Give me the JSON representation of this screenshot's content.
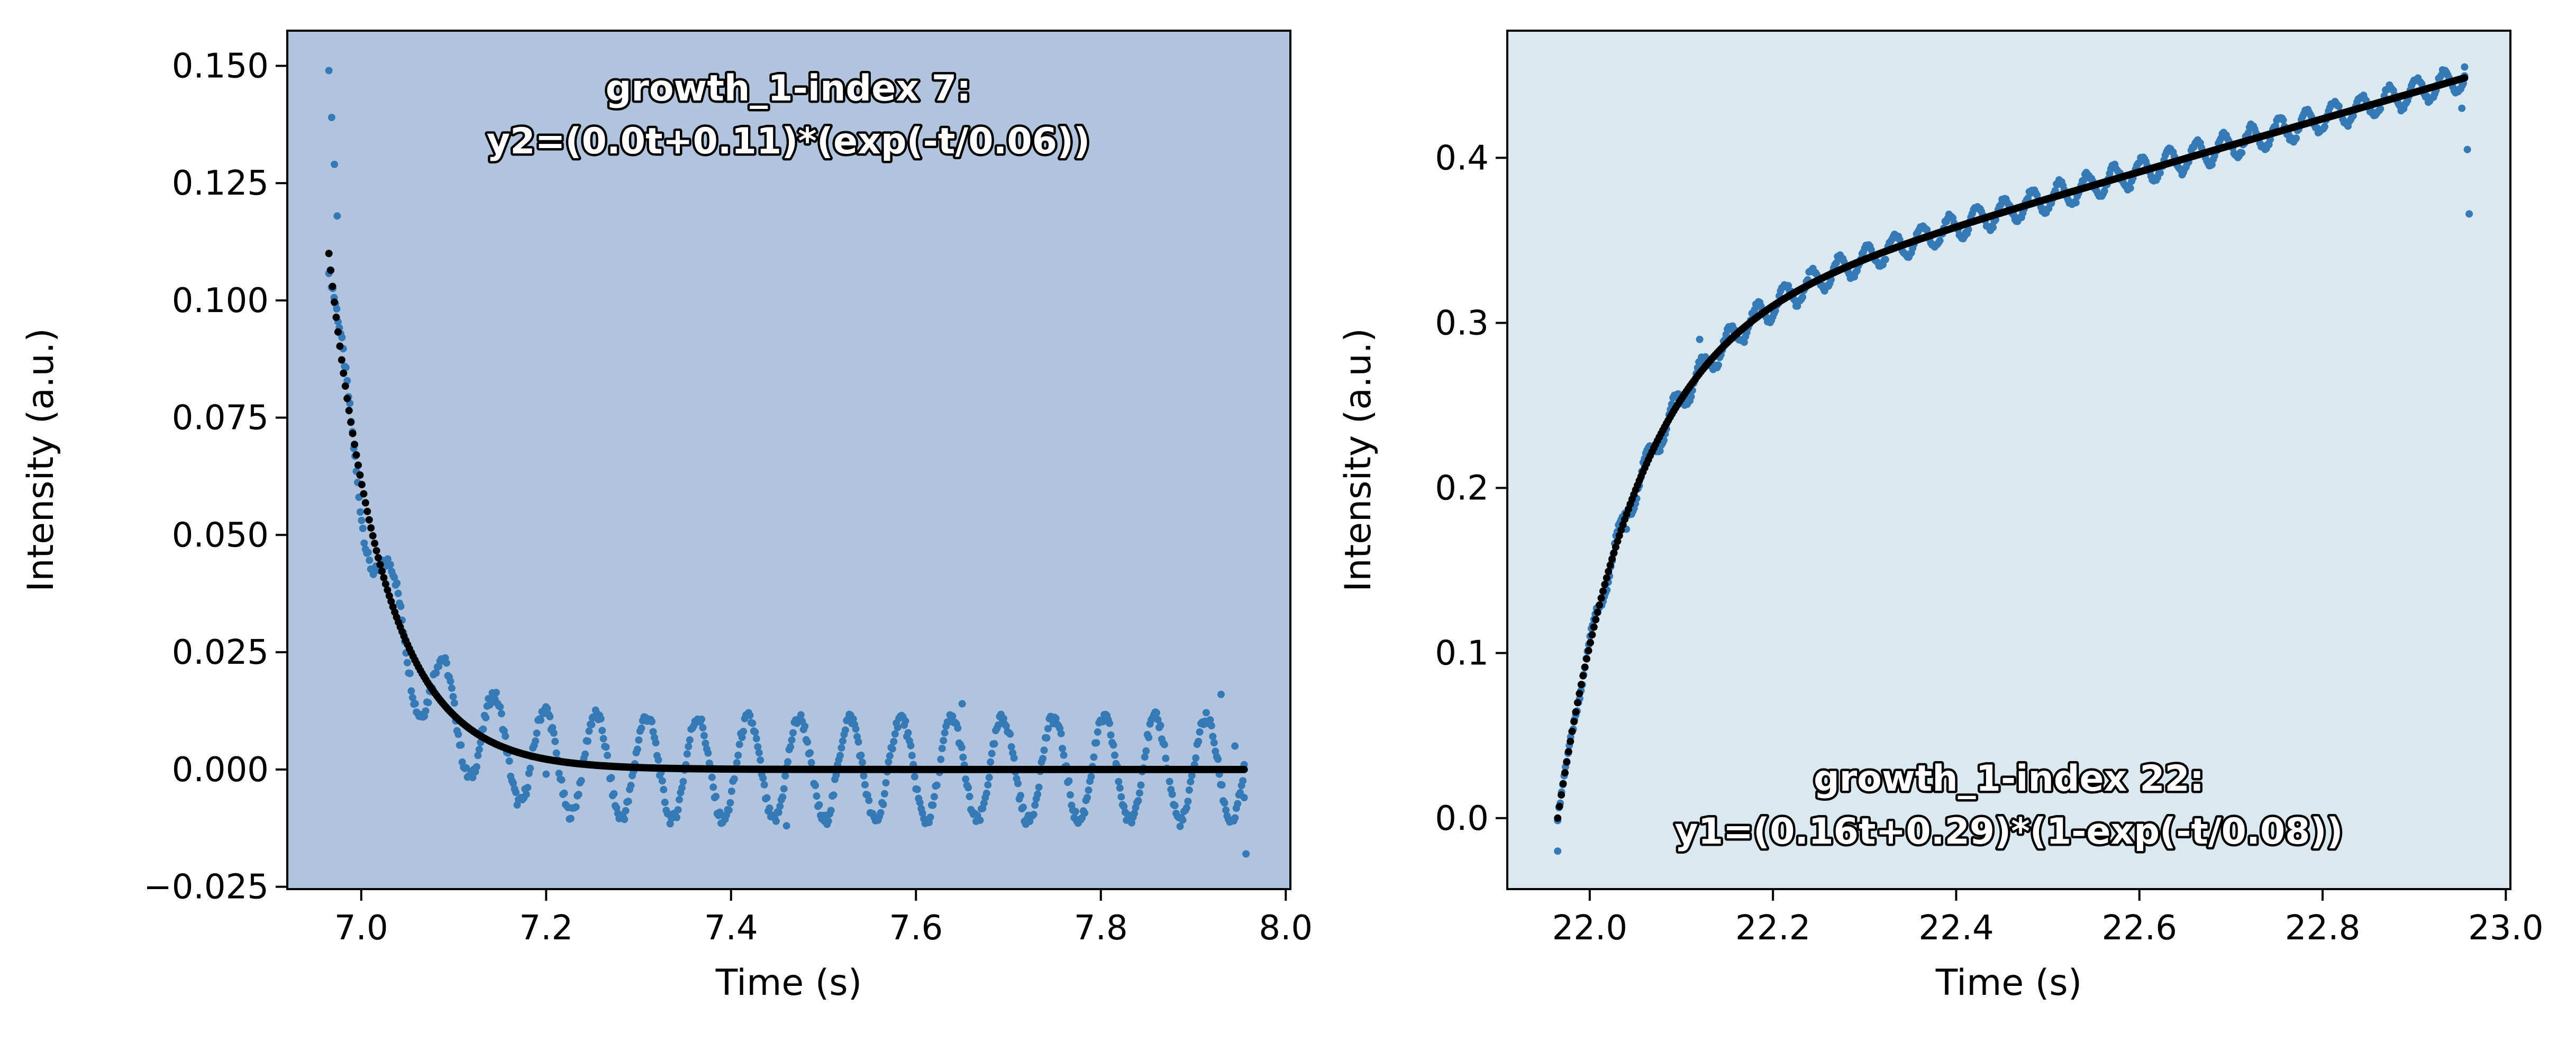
{
  "colors": {
    "left_panel_bg": "#b0c4de",
    "right_panel_bg": "#dae8f0",
    "data_points": "#3679b7",
    "fit_curve": "#000000"
  },
  "chart_data": [
    {
      "type": "scatter",
      "title": "",
      "annotation_lines": [
        "growth_1-index 7:",
        "y2=(0.0t+0.11)*(exp(-t/0.06))"
      ],
      "annotation_position": "top-center",
      "xlabel": "Time (s)",
      "ylabel": "Intensity (a.u.)",
      "xlim": [
        6.92,
        8.005
      ],
      "ylim": [
        -0.0255,
        0.1575
      ],
      "xticks": [
        7.0,
        7.2,
        7.4,
        7.6,
        7.8,
        8.0
      ],
      "xtick_labels": [
        "7.0",
        "7.2",
        "7.4",
        "7.6",
        "7.8",
        "8.0"
      ],
      "yticks": [
        -0.025,
        0.0,
        0.025,
        0.05,
        0.075,
        0.1,
        0.125,
        0.15
      ],
      "ytick_labels": [
        "−0.025",
        "0.000",
        "0.025",
        "0.050",
        "0.075",
        "0.100",
        "0.125",
        "0.150"
      ],
      "grid": false,
      "series": [
        {
          "kind": "measured",
          "x_range": [
            6.965,
            7.955
          ],
          "profile": "decay-with-oscillation",
          "decay_amplitude": 0.107,
          "decay_tau": 0.06,
          "oscillation_amplitude": 0.011,
          "oscillation_period": 0.055,
          "points": [
            [
              6.965,
              0.149
            ],
            [
              6.968,
              0.139
            ],
            [
              6.971,
              0.129
            ],
            [
              6.974,
              0.118
            ],
            [
              7.955,
              -0.006
            ],
            [
              7.957,
              -0.018
            ],
            [
              7.945,
              0.005
            ],
            [
              7.93,
              0.016
            ],
            [
              7.46,
              -0.012
            ],
            [
              7.65,
              0.014
            ],
            [
              7.2,
              -0.001
            ],
            [
              7.25,
              0.011
            ]
          ]
        },
        {
          "kind": "fit",
          "equation": "y2=(0.0t+0.11)*(exp(-t/0.06))",
          "x_range": [
            6.965,
            7.955
          ],
          "t0": 6.965,
          "amplitude": 0.11,
          "tau": 0.06
        }
      ]
    },
    {
      "type": "scatter",
      "title": "",
      "annotation_lines": [
        "growth_1-index 22:",
        "y1=(0.16t+0.29)*(1-exp(-t/0.08))"
      ],
      "annotation_position": "bottom-center",
      "xlabel": "Time (s)",
      "ylabel": "Intensity (a.u.)",
      "xlim": [
        21.91,
        23.005
      ],
      "ylim": [
        -0.043,
        0.477
      ],
      "xticks": [
        22.0,
        22.2,
        22.4,
        22.6,
        22.8,
        23.0
      ],
      "xtick_labels": [
        "22.0",
        "22.2",
        "22.4",
        "22.6",
        "22.8",
        "23.0"
      ],
      "yticks": [
        0.0,
        0.1,
        0.2,
        0.3,
        0.4
      ],
      "ytick_labels": [
        "0.0",
        "0.1",
        "0.2",
        "0.3",
        "0.4"
      ],
      "grid": false,
      "series": [
        {
          "kind": "measured",
          "x_range": [
            21.965,
            22.955
          ],
          "profile": "growth-with-oscillation",
          "oscillation_amplitude": 0.008,
          "oscillation_period": 0.03,
          "points": [
            [
              21.965,
              -0.02
            ],
            [
              22.955,
              0.455
            ],
            [
              22.958,
              0.405
            ],
            [
              22.96,
              0.366
            ],
            [
              22.952,
              0.43
            ],
            [
              22.04,
              0.175
            ],
            [
              22.12,
              0.29
            ]
          ]
        },
        {
          "kind": "fit",
          "equation": "y1=(0.16t+0.29)*(1-exp(-t/0.08))",
          "x_range": [
            21.965,
            22.955
          ],
          "t0": 21.965,
          "slope": 0.16,
          "offset": 0.29,
          "tau": 0.08
        }
      ]
    }
  ]
}
